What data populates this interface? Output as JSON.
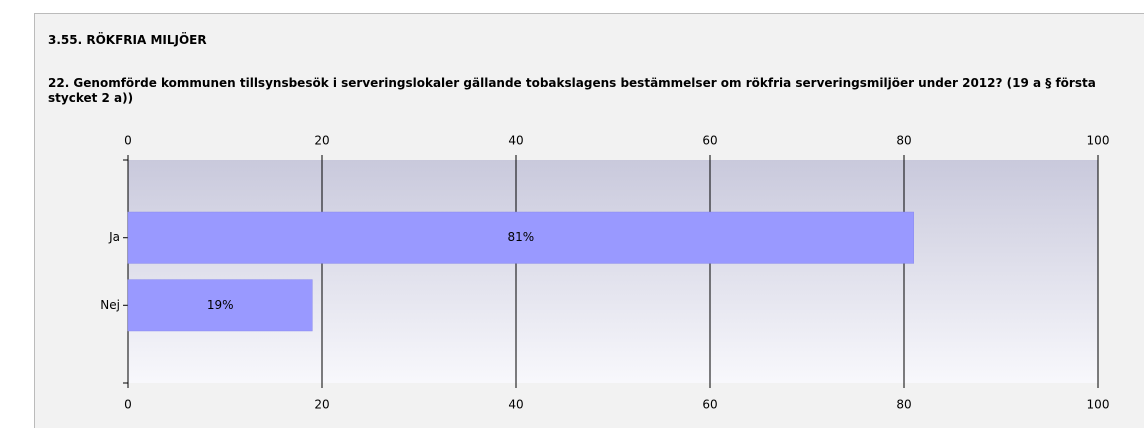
{
  "chart_data": {
    "type": "barh",
    "title": "3.55. RÖKFRIA MILJÖER",
    "subtitle": "22. Genomförde kommunen tillsynsbesök i serveringslokaler gällande tobakslagens bestämmelser om rökfria serveringsmiljöer under 2012? (19 a § första stycket 2 a))",
    "categories": [
      "Ja",
      "Nej"
    ],
    "values": [
      81,
      19
    ],
    "value_labels": [
      "81%",
      "19%"
    ],
    "color": "#9999ff",
    "xlim": [
      0,
      100
    ],
    "xticks": [
      0,
      20,
      40,
      60,
      80,
      100
    ],
    "grid": true
  }
}
